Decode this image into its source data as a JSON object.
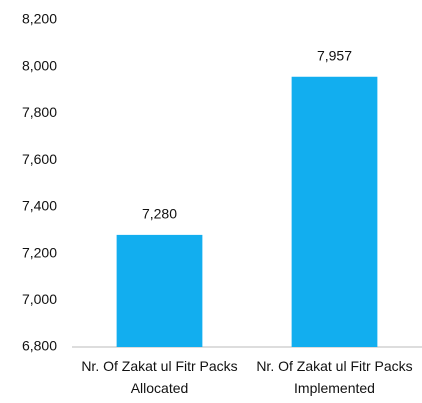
{
  "chart_data": {
    "type": "bar",
    "categories": [
      "Nr. Of Zakat ul Fitr Packs Allocated",
      "Nr. Of Zakat ul Fitr Packs Implemented"
    ],
    "values": [
      7280,
      7957
    ],
    "value_labels": [
      "7,280",
      "7,957"
    ],
    "color": "#12aeef",
    "ylim": [
      6800,
      8200
    ],
    "yticks": [
      {
        "value": 6800,
        "label": "6,800"
      },
      {
        "value": 7000,
        "label": "7,000"
      },
      {
        "value": 7200,
        "label": "7,200"
      },
      {
        "value": 7400,
        "label": "7,400"
      },
      {
        "value": 7600,
        "label": "7,600"
      },
      {
        "value": 7800,
        "label": "7,800"
      },
      {
        "value": 8000,
        "label": "8,000"
      },
      {
        "value": 8200,
        "label": "8,200"
      }
    ],
    "grid": false
  }
}
